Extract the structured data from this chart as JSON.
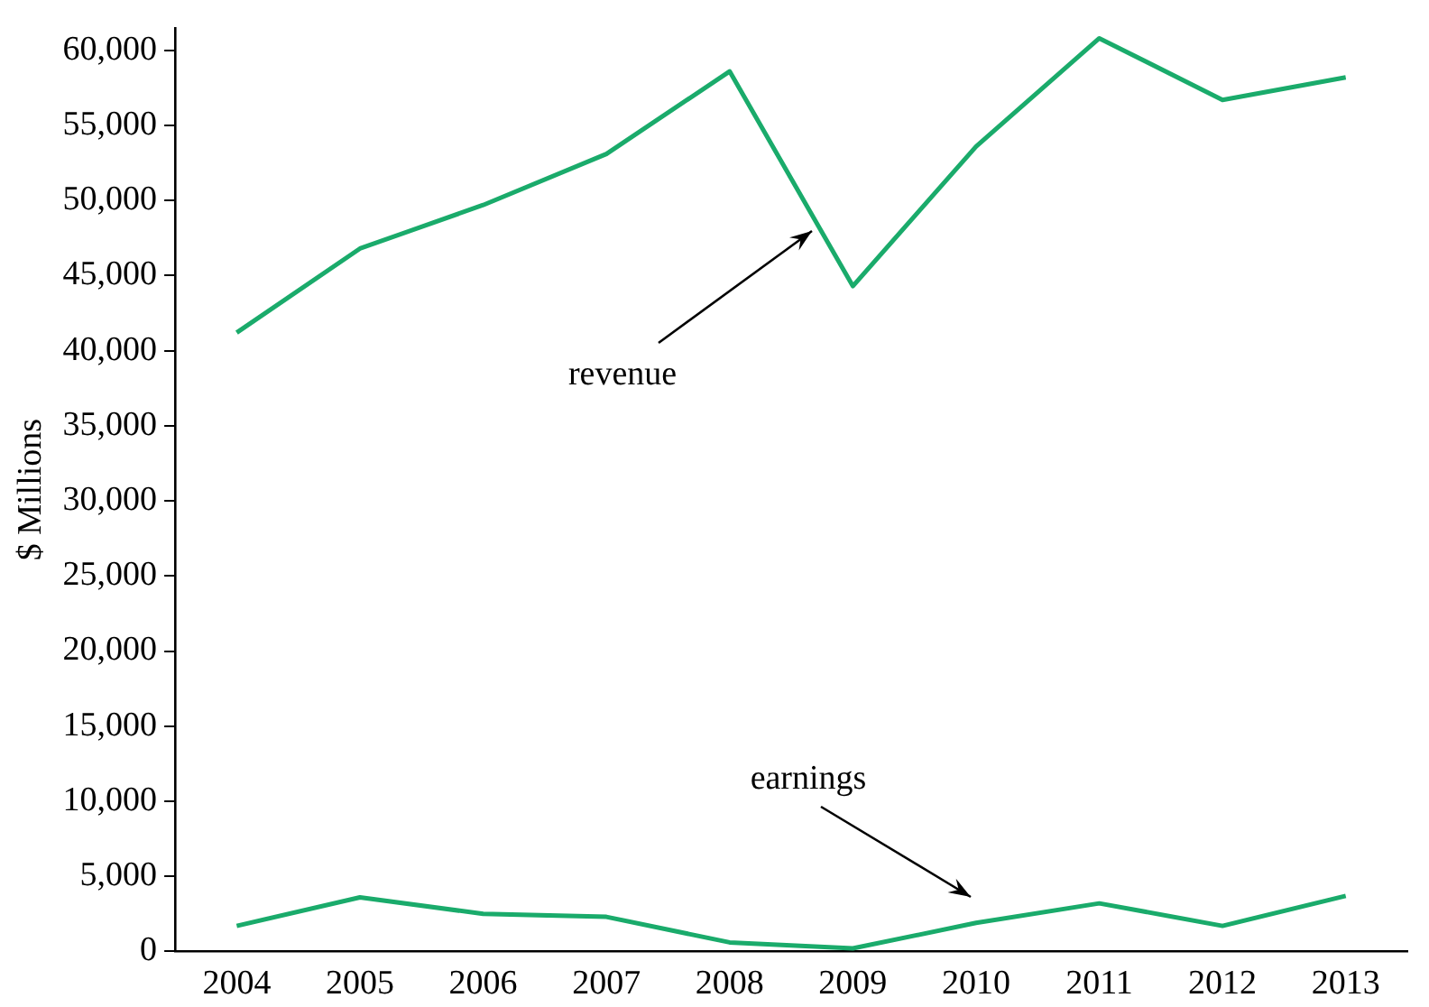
{
  "chart_data": {
    "type": "line",
    "ylabel": "$ Millions",
    "categories": [
      "2004",
      "2005",
      "2006",
      "2007",
      "2008",
      "2009",
      "2010",
      "2011",
      "2012",
      "2013"
    ],
    "series": [
      {
        "name": "revenue",
        "color": "#1aab6b",
        "values": [
          41200,
          46800,
          49700,
          53100,
          58600,
          44300,
          53600,
          60800,
          56700,
          58200
        ]
      },
      {
        "name": "earnings",
        "color": "#1aab6b",
        "values": [
          1700,
          3600,
          2500,
          2300,
          600,
          200,
          1900,
          3200,
          1700,
          3700
        ]
      }
    ],
    "ylim": [
      0,
      61500
    ],
    "yticks": [
      {
        "value": 0,
        "label": "0"
      },
      {
        "value": 5000,
        "label": "5,000"
      },
      {
        "value": 10000,
        "label": "10,000"
      },
      {
        "value": 15000,
        "label": "15,000"
      },
      {
        "value": 20000,
        "label": "20,000"
      },
      {
        "value": 25000,
        "label": "25,000"
      },
      {
        "value": 30000,
        "label": "30,000"
      },
      {
        "value": 35000,
        "label": "35,000"
      },
      {
        "value": 40000,
        "label": "40,000"
      },
      {
        "value": 45000,
        "label": "45,000"
      },
      {
        "value": 50000,
        "label": "50,000"
      },
      {
        "value": 55000,
        "label": "55,000"
      },
      {
        "value": 60000,
        "label": "60,000"
      }
    ],
    "grid": false,
    "legend": false,
    "marker": "none",
    "line_style": "solid"
  }
}
